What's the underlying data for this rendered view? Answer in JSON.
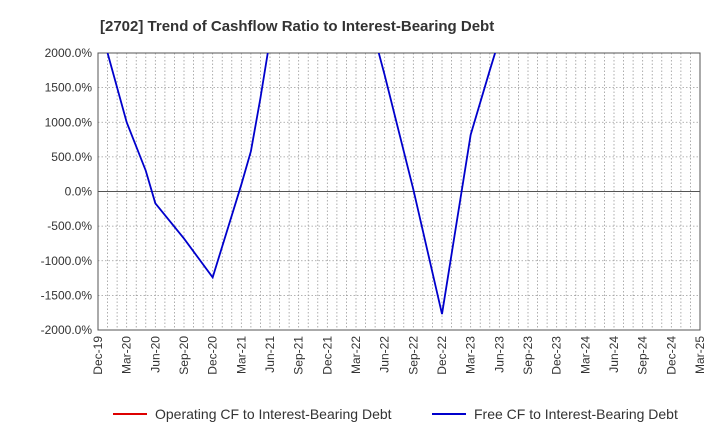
{
  "chart_data": {
    "type": "line",
    "title": "[2702]  Trend of Cashflow Ratio to Interest-Bearing Debt",
    "xlabel": "",
    "ylabel": "",
    "ylim": [
      -2000,
      2000
    ],
    "yticks": [
      2000,
      1500,
      1000,
      500,
      0,
      -500,
      -1000,
      -1500,
      -2000
    ],
    "ytick_labels": [
      "2000.0%",
      "1500.0%",
      "1000.0%",
      "500.0%",
      "0.0%",
      "-500.0%",
      "-1000.0%",
      "-1500.0%",
      "-2000.0%"
    ],
    "xtick_labels": [
      "Dec-19",
      "Mar-20",
      "Jun-20",
      "Sep-20",
      "Dec-20",
      "Mar-21",
      "Jun-21",
      "Sep-21",
      "Dec-21",
      "Mar-22",
      "Jun-22",
      "Sep-22",
      "Dec-22",
      "Mar-23",
      "Jun-23",
      "Sep-23",
      "Dec-23",
      "Mar-24",
      "Jun-24",
      "Sep-24",
      "Dec-24",
      "Mar-25"
    ],
    "grid": true,
    "legend_position": "bottom",
    "series": [
      {
        "name": "Operating CF to Interest-Bearing Debt",
        "color": "#dd0000",
        "points": []
      },
      {
        "name": "Free CF to Interest-Bearing Debt",
        "color": "#0000cc",
        "points": [
          [
            "Dec-19",
            2200
          ],
          [
            "Jan-20",
            2000
          ],
          [
            "Mar-20",
            1000
          ],
          [
            "May-20",
            300
          ],
          [
            "Jun-20",
            -170
          ],
          [
            "Sep-20",
            -680
          ],
          [
            "Dec-20",
            -1240
          ],
          [
            "Mar-21",
            100
          ],
          [
            "Apr-21",
            580
          ],
          [
            "May-21",
            1350
          ],
          [
            "Jun-21",
            2200
          ],
          [
            "May-22",
            2200
          ],
          [
            "Jun-22",
            1680
          ],
          [
            "Sep-22",
            30
          ],
          [
            "Dec-22",
            -1770
          ],
          [
            "Mar-23",
            820
          ],
          [
            "May-23",
            1750
          ],
          [
            "Jun-23",
            2200
          ]
        ]
      }
    ]
  }
}
